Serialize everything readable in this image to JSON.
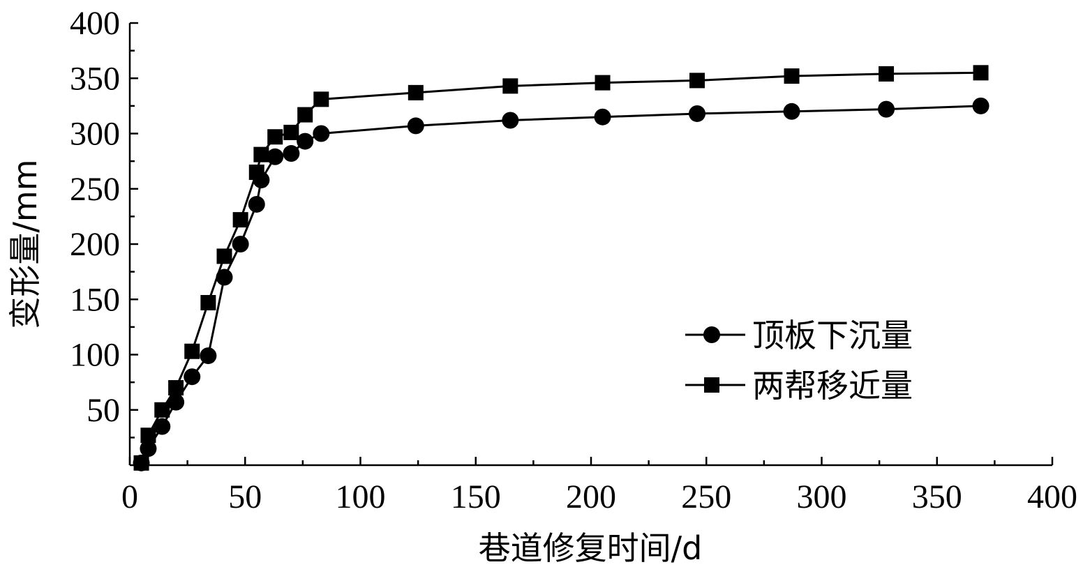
{
  "chart_data": {
    "type": "line",
    "xlabel": "巷道修复时间/d",
    "ylabel": "变形量/mm",
    "xlim": [
      0,
      400
    ],
    "ylim": [
      0,
      400
    ],
    "xticks": [
      0,
      50,
      100,
      150,
      200,
      250,
      300,
      350,
      400
    ],
    "yticks": [
      50,
      100,
      150,
      200,
      250,
      300,
      350,
      400
    ],
    "grid": false,
    "legend_position": "center-right",
    "series": [
      {
        "name": "顶板下沉量",
        "marker": "circle",
        "color": "#000000",
        "x": [
          5,
          8,
          14,
          20,
          27,
          34,
          41,
          48,
          55,
          57,
          63,
          70,
          76,
          83,
          124,
          165,
          205,
          246,
          287,
          328,
          369
        ],
        "y": [
          2,
          15,
          35,
          57,
          80,
          99,
          170,
          200,
          236,
          258,
          279,
          282,
          293,
          300,
          307,
          312,
          315,
          318,
          320,
          322,
          325
        ]
      },
      {
        "name": "两帮移近量",
        "marker": "square",
        "color": "#000000",
        "x": [
          5,
          8,
          14,
          20,
          27,
          34,
          41,
          48,
          55,
          57,
          63,
          70,
          76,
          83,
          124,
          165,
          205,
          246,
          287,
          328,
          369
        ],
        "y": [
          2,
          27,
          50,
          70,
          103,
          147,
          189,
          222,
          265,
          281,
          297,
          301,
          317,
          331,
          337,
          343,
          346,
          348,
          352,
          354,
          355
        ]
      }
    ]
  }
}
